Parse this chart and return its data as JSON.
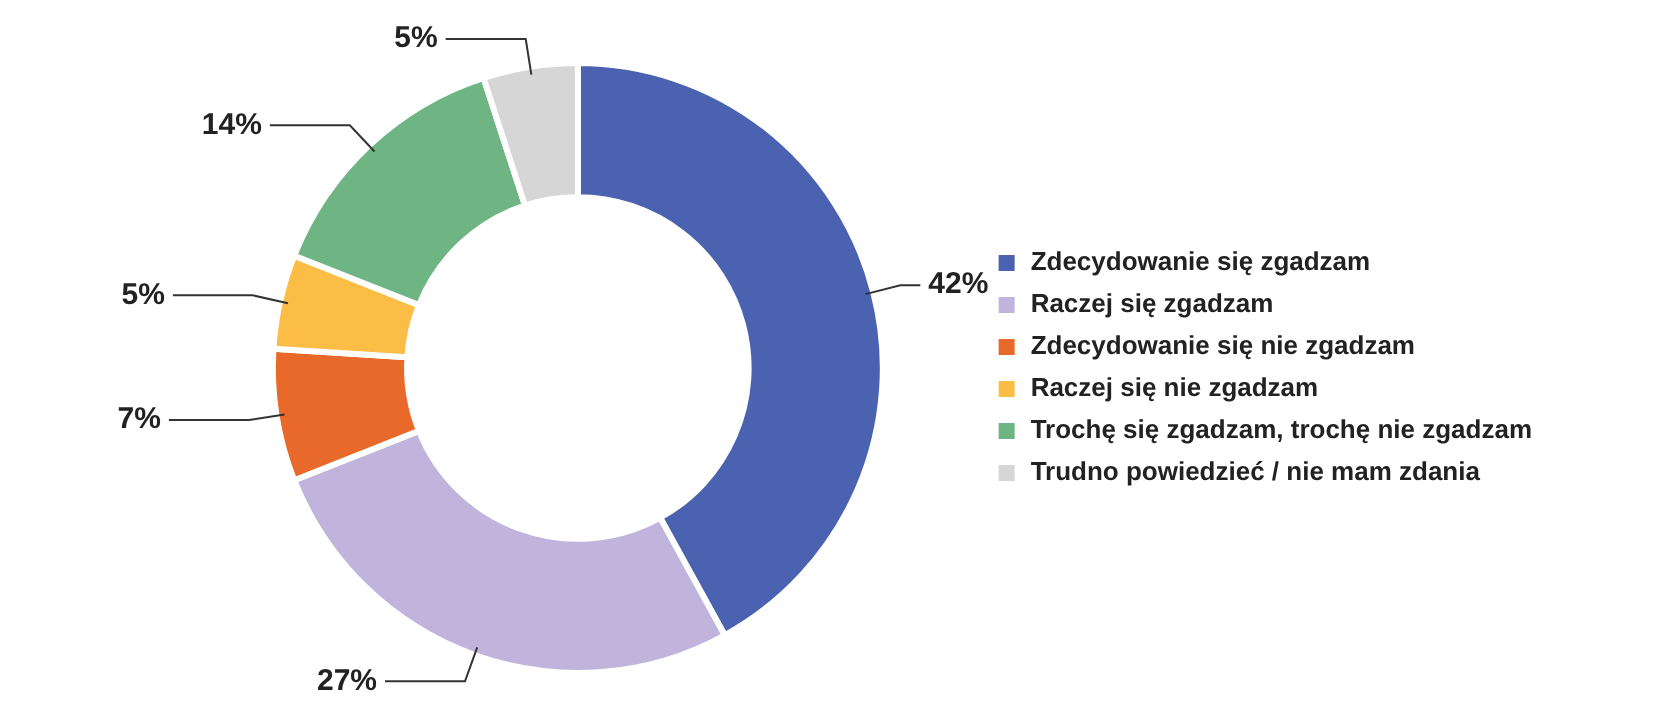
{
  "chart_data": {
    "type": "donut",
    "categories": [
      "Zdecydowanie się zgadzam",
      "Raczej się zgadzam",
      "Zdecydowanie się nie zgadzam",
      "Raczej się nie zgadzam",
      "Trochę się zgadzam, trochę nie zgadzam",
      "Trudno powiedzieć / nie mam zdania"
    ],
    "values": [
      42,
      27,
      7,
      5,
      14,
      5
    ],
    "colors": [
      "#4a62b0",
      "#c1b4dc",
      "#e8692a",
      "#fbbd45",
      "#6eb583",
      "#d6d6d6"
    ],
    "value_labels": [
      "42%",
      "27%",
      "7%",
      "5%",
      "14%",
      "5%"
    ],
    "legend": "right"
  }
}
